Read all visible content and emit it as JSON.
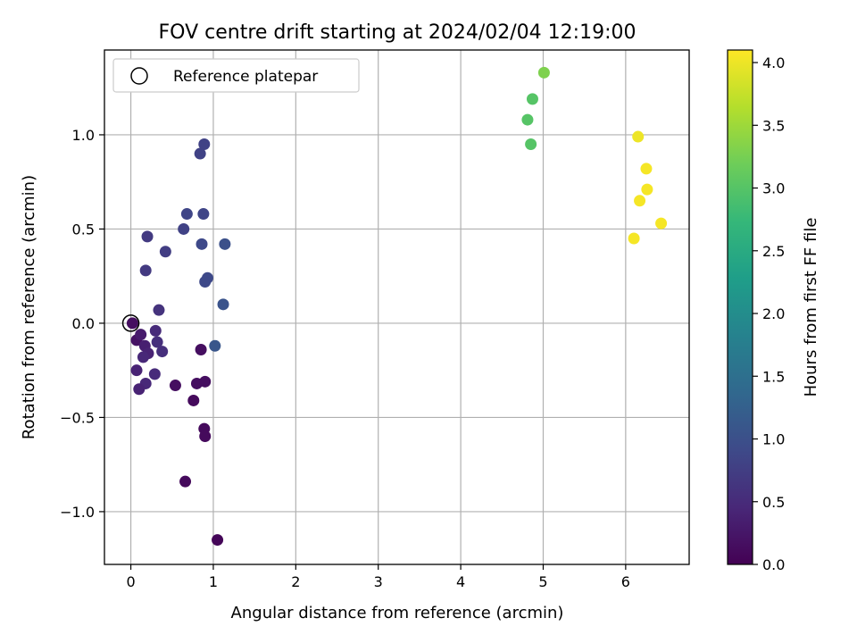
{
  "chart_data": {
    "type": "scatter",
    "title": "FOV centre drift starting at 2024/02/04 12:19:00",
    "xlabel": "Angular distance from reference (arcmin)",
    "ylabel": "Rotation from reference (arcmin)",
    "xlim": [
      -0.32,
      6.77
    ],
    "ylim": [
      -1.28,
      1.45
    ],
    "xticks": [
      0,
      1,
      2,
      3,
      4,
      5,
      6
    ],
    "yticks": [
      -1.0,
      -0.5,
      0.0,
      0.5,
      1.0
    ],
    "ytick_labels": [
      "−1.0",
      "−0.5",
      "0.0",
      "0.5",
      "1.0"
    ],
    "grid": true,
    "legend": {
      "position": "top-left",
      "label": "Reference platepar"
    },
    "reference_point": {
      "x": 0.0,
      "y": 0.0
    },
    "colorbar": {
      "label": "Hours from first FF file",
      "colormap": "viridis",
      "range": [
        0.0,
        4.1
      ],
      "ticks": [
        "0.0",
        "0.5",
        "1.0",
        "1.5",
        "2.0",
        "2.5",
        "3.0",
        "3.5",
        "4.0"
      ]
    },
    "points": [
      {
        "x": 0.02,
        "y": 0.0,
        "t": 0.15
      },
      {
        "x": 0.07,
        "y": -0.09,
        "t": 0.2
      },
      {
        "x": 0.12,
        "y": -0.06,
        "t": 0.3
      },
      {
        "x": 0.17,
        "y": -0.12,
        "t": 0.35
      },
      {
        "x": 0.21,
        "y": -0.16,
        "t": 0.4
      },
      {
        "x": 0.15,
        "y": -0.18,
        "t": 0.45
      },
      {
        "x": 0.07,
        "y": -0.25,
        "t": 0.4
      },
      {
        "x": 0.18,
        "y": -0.32,
        "t": 0.45
      },
      {
        "x": 0.1,
        "y": -0.35,
        "t": 0.4
      },
      {
        "x": 0.3,
        "y": -0.04,
        "t": 0.5
      },
      {
        "x": 0.32,
        "y": -0.1,
        "t": 0.55
      },
      {
        "x": 0.38,
        "y": -0.15,
        "t": 0.55
      },
      {
        "x": 0.29,
        "y": -0.27,
        "t": 0.5
      },
      {
        "x": 0.54,
        "y": -0.33,
        "t": 0.15
      },
      {
        "x": 0.8,
        "y": -0.32,
        "t": 0.15
      },
      {
        "x": 0.9,
        "y": -0.31,
        "t": 0.15
      },
      {
        "x": 0.76,
        "y": -0.41,
        "t": 0.1
      },
      {
        "x": 0.85,
        "y": -0.14,
        "t": 0.15
      },
      {
        "x": 0.89,
        "y": -0.56,
        "t": 0.1
      },
      {
        "x": 0.9,
        "y": -0.6,
        "t": 0.1
      },
      {
        "x": 0.66,
        "y": -0.84,
        "t": 0.1
      },
      {
        "x": 1.05,
        "y": -1.15,
        "t": 0.05
      },
      {
        "x": 0.34,
        "y": 0.07,
        "t": 0.6
      },
      {
        "x": 0.18,
        "y": 0.28,
        "t": 0.7
      },
      {
        "x": 0.2,
        "y": 0.46,
        "t": 0.7
      },
      {
        "x": 0.42,
        "y": 0.38,
        "t": 0.75
      },
      {
        "x": 0.64,
        "y": 0.5,
        "t": 0.8
      },
      {
        "x": 0.68,
        "y": 0.58,
        "t": 0.85
      },
      {
        "x": 0.88,
        "y": 0.58,
        "t": 0.85
      },
      {
        "x": 0.86,
        "y": 0.42,
        "t": 0.9
      },
      {
        "x": 0.93,
        "y": 0.24,
        "t": 0.9
      },
      {
        "x": 0.9,
        "y": 0.22,
        "t": 0.9
      },
      {
        "x": 0.84,
        "y": 0.9,
        "t": 0.8
      },
      {
        "x": 0.89,
        "y": 0.95,
        "t": 0.8
      },
      {
        "x": 1.14,
        "y": 0.42,
        "t": 1.0
      },
      {
        "x": 1.12,
        "y": 0.1,
        "t": 1.05
      },
      {
        "x": 1.02,
        "y": -0.12,
        "t": 1.1
      },
      {
        "x": 5.01,
        "y": 1.33,
        "t": 3.3
      },
      {
        "x": 4.87,
        "y": 1.19,
        "t": 3.0
      },
      {
        "x": 4.81,
        "y": 1.08,
        "t": 3.0
      },
      {
        "x": 4.85,
        "y": 0.95,
        "t": 3.0
      },
      {
        "x": 6.15,
        "y": 0.99,
        "t": 4.0
      },
      {
        "x": 6.25,
        "y": 0.82,
        "t": 4.05
      },
      {
        "x": 6.26,
        "y": 0.71,
        "t": 4.05
      },
      {
        "x": 6.17,
        "y": 0.65,
        "t": 4.05
      },
      {
        "x": 6.43,
        "y": 0.53,
        "t": 4.05
      },
      {
        "x": 6.1,
        "y": 0.45,
        "t": 4.05
      }
    ]
  }
}
